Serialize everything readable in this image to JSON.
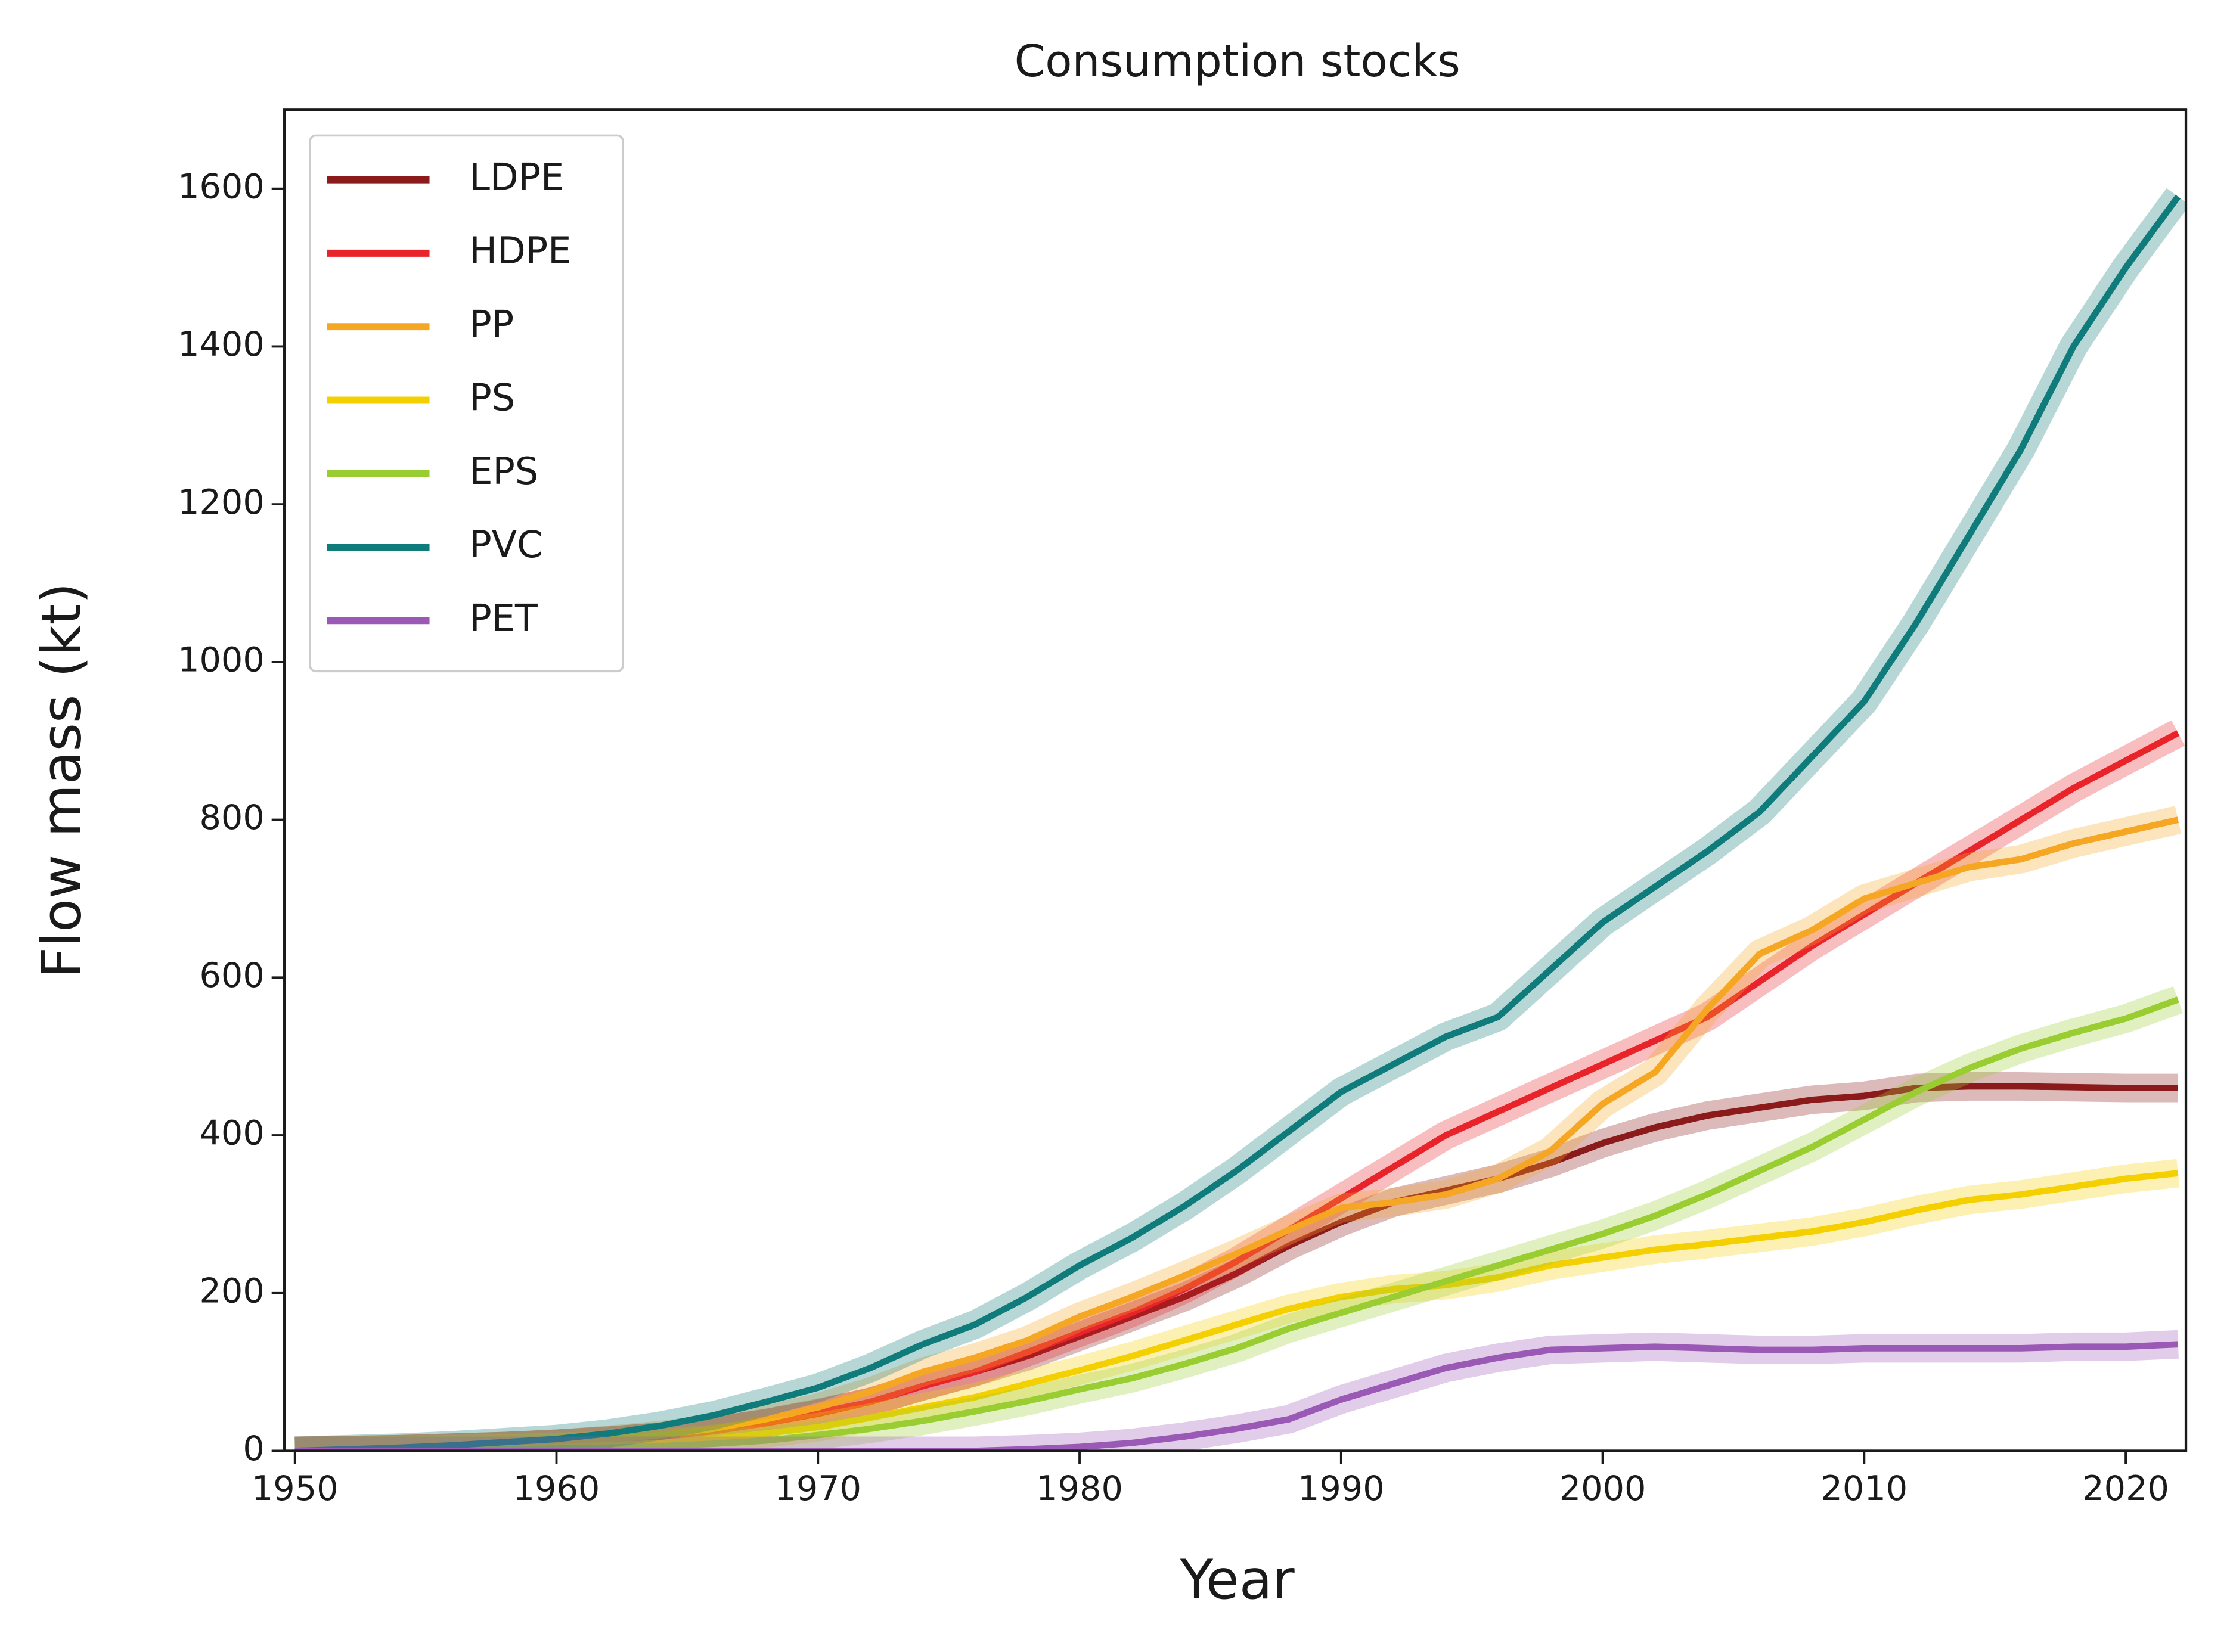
{
  "chart_data": {
    "type": "line",
    "title": "Consumption stocks",
    "x_label": "Year",
    "y_label": "Flow mass (kt)",
    "x": [
      1950,
      1952,
      1954,
      1956,
      1958,
      1960,
      1962,
      1964,
      1966,
      1968,
      1970,
      1972,
      1974,
      1976,
      1978,
      1980,
      1982,
      1984,
      1986,
      1988,
      1990,
      1992,
      1994,
      1996,
      1998,
      2000,
      2002,
      2004,
      2006,
      2008,
      2010,
      2012,
      2014,
      2016,
      2018,
      2020,
      2022
    ],
    "series": [
      {
        "name": "LDPE",
        "color": "#8b1a1a",
        "values": [
          0,
          1,
          2,
          4,
          6,
          9,
          13,
          18,
          25,
          35,
          47,
          62,
          82,
          100,
          120,
          145,
          170,
          195,
          225,
          260,
          290,
          315,
          330,
          345,
          365,
          390,
          410,
          425,
          435,
          445,
          450,
          460,
          462,
          462,
          461,
          460,
          460
        ]
      },
      {
        "name": "HDPE",
        "color": "#e8232a",
        "values": [
          0,
          1,
          2,
          4,
          6,
          9,
          13,
          18,
          25,
          35,
          48,
          62,
          82,
          100,
          125,
          150,
          175,
          205,
          240,
          280,
          320,
          360,
          400,
          430,
          460,
          490,
          520,
          550,
          595,
          640,
          680,
          720,
          760,
          800,
          840,
          875,
          910
        ]
      },
      {
        "name": "PP",
        "color": "#f5a623",
        "values": [
          0,
          1,
          2,
          4,
          6,
          9,
          14,
          20,
          28,
          40,
          55,
          75,
          100,
          118,
          140,
          170,
          195,
          222,
          250,
          280,
          308,
          315,
          325,
          345,
          380,
          440,
          480,
          560,
          630,
          660,
          700,
          720,
          740,
          750,
          770,
          785,
          800
        ]
      },
      {
        "name": "PS",
        "color": "#f5d000",
        "values": [
          0,
          0,
          1,
          2,
          3,
          5,
          7,
          10,
          15,
          22,
          30,
          42,
          55,
          68,
          85,
          102,
          120,
          140,
          160,
          180,
          195,
          205,
          210,
          220,
          235,
          245,
          255,
          262,
          270,
          278,
          290,
          305,
          318,
          325,
          335,
          345,
          352
        ]
      },
      {
        "name": "EPS",
        "color": "#9acd32",
        "values": [
          0,
          0,
          0,
          1,
          2,
          3,
          4,
          6,
          9,
          13,
          20,
          28,
          38,
          50,
          63,
          78,
          92,
          110,
          130,
          155,
          175,
          195,
          215,
          235,
          255,
          275,
          298,
          325,
          355,
          385,
          420,
          455,
          485,
          510,
          530,
          548,
          572
        ]
      },
      {
        "name": "PVC",
        "color": "#0f7b7b",
        "values": [
          0,
          2,
          4,
          7,
          11,
          15,
          22,
          32,
          45,
          62,
          80,
          105,
          135,
          160,
          195,
          235,
          270,
          310,
          355,
          405,
          455,
          490,
          525,
          550,
          610,
          670,
          715,
          760,
          810,
          880,
          950,
          1050,
          1160,
          1270,
          1400,
          1500,
          1590
        ]
      },
      {
        "name": "PET",
        "color": "#9b59b6",
        "values": [
          0,
          0,
          0,
          0,
          0,
          0,
          0,
          0,
          0,
          0,
          0,
          0,
          0,
          0,
          2,
          5,
          10,
          18,
          28,
          40,
          65,
          85,
          105,
          118,
          128,
          130,
          132,
          130,
          128,
          128,
          130,
          130,
          130,
          130,
          132,
          132,
          135
        ]
      }
    ],
    "xlim": [
      1949.6,
      2022.3
    ],
    "ylim": [
      0,
      1700
    ],
    "xticks": [
      1950,
      1960,
      1970,
      1980,
      1990,
      2000,
      2010,
      2020
    ],
    "yticks": [
      0,
      200,
      400,
      600,
      800,
      1000,
      1200,
      1400,
      1600
    ],
    "legend": "upper left"
  }
}
